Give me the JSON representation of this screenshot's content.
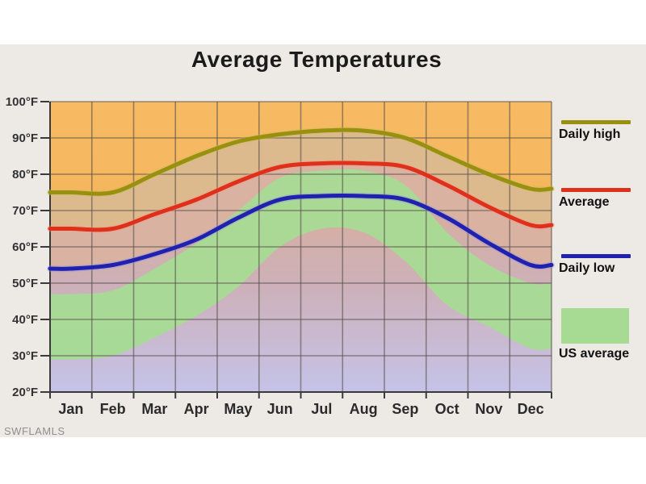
{
  "watermark": "SWFLAMLS",
  "chart_data": {
    "type": "area",
    "title": "Average Temperatures",
    "months": [
      "Jan",
      "Feb",
      "Mar",
      "Apr",
      "May",
      "Jun",
      "Jul",
      "Aug",
      "Sep",
      "Oct",
      "Nov",
      "Dec"
    ],
    "ylim": [
      20,
      100
    ],
    "y_ticks": [
      100,
      90,
      80,
      70,
      60,
      50,
      40,
      30,
      20
    ],
    "y_unit": "°F",
    "grid": true,
    "legend_position": "right",
    "series": [
      {
        "name": "Daily high",
        "type": "line",
        "color": "#98900e",
        "values": [
          75,
          75,
          80,
          85,
          89,
          91,
          92,
          92,
          90,
          85,
          80,
          76
        ]
      },
      {
        "name": "Average",
        "type": "line",
        "color": "#df301c",
        "values": [
          65,
          65,
          69,
          73,
          78,
          82,
          83,
          83,
          82,
          77,
          71,
          66
        ]
      },
      {
        "name": "Daily low",
        "type": "line",
        "color": "#2121b0",
        "values": [
          54,
          55,
          58,
          62,
          68,
          73,
          74,
          74,
          73,
          68,
          61,
          55
        ]
      },
      {
        "name": "US average",
        "type": "band",
        "color": "#a7db93",
        "upper": [
          47,
          48,
          54,
          61,
          70,
          79,
          81,
          81,
          77,
          64,
          55,
          50
        ],
        "lower": [
          29,
          30,
          35,
          41,
          49,
          60,
          65,
          64,
          56,
          44,
          38,
          32
        ]
      }
    ],
    "colors": {
      "plot_bg_top": "#f7bb64",
      "plot_bg_bottom": "#f0ac50",
      "under_high": "#ddba8e",
      "under_avg": "#d9b2a2",
      "under_low_top": "#d8ae9c",
      "under_low_mid": "#cdb0b8",
      "under_low_bottom": "#c5c3e9",
      "us_band": "#a7db93",
      "grid": "#56504a",
      "axis": "#3a3a3a",
      "panel_bg": "#edeae6",
      "title": "#1b1b1b",
      "tick_label": "#333333",
      "month_label": "#2b2b2b",
      "watermark": "#8f8f8f",
      "legend_label": "#111111"
    },
    "halos": [
      "#c6c060",
      "#f49a8a",
      "#8f8fe0"
    ]
  }
}
